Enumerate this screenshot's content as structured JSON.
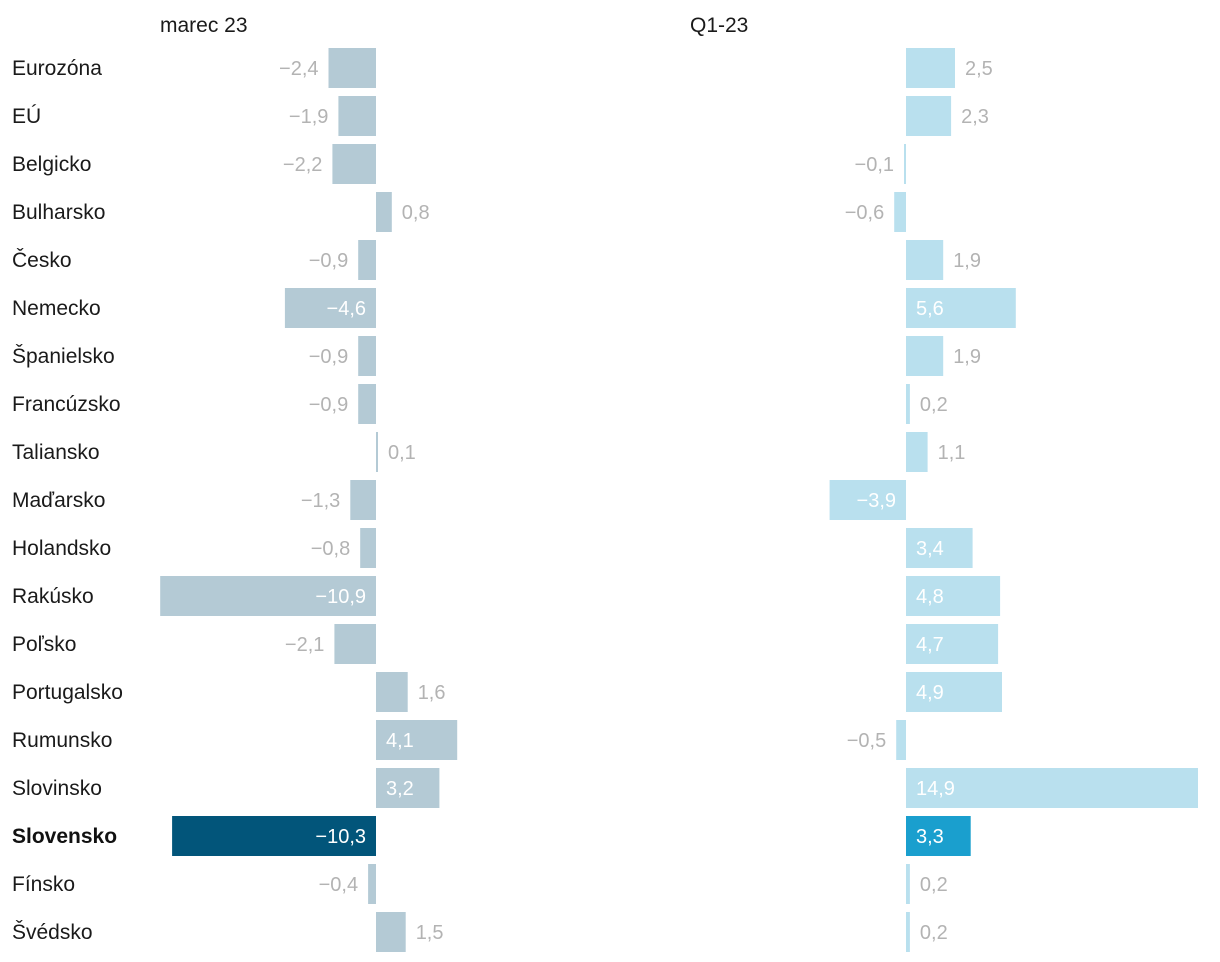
{
  "chart_data": {
    "type": "bar",
    "orientation": "horizontal",
    "categories": [
      "Eurozóna",
      "EÚ",
      "Belgicko",
      "Bulharsko",
      "Česko",
      "Nemecko",
      "Španielsko",
      "Francúzsko",
      "Taliansko",
      "Maďarsko",
      "Holandsko",
      "Rakúsko",
      "Poľsko",
      "Portugalsko",
      "Rumunsko",
      "Slovinsko",
      "Slovensko",
      "Fínsko",
      "Švédsko"
    ],
    "highlight": "Slovensko",
    "series": [
      {
        "name": "marec 23",
        "values": [
          -2.4,
          -1.9,
          -2.2,
          0.8,
          -0.9,
          -4.6,
          -0.9,
          -0.9,
          0.1,
          -1.3,
          -0.8,
          -10.9,
          -2.1,
          1.6,
          4.1,
          3.2,
          -10.3,
          -0.4,
          1.5
        ],
        "labels": [
          "−2,4",
          "−1,9",
          "−2,2",
          "0,8",
          "−0,9",
          "−4,6",
          "−0,9",
          "−0,9",
          "0,1",
          "−1,3",
          "−0,8",
          "−10,9",
          "−2,1",
          "1,6",
          "4,1",
          "3,2",
          "−10,3",
          "−0,4",
          "1,5"
        ],
        "color": "#b4cad5",
        "highlight_color": "#02557a"
      },
      {
        "name": "Q1-23",
        "values": [
          2.5,
          2.3,
          -0.1,
          -0.6,
          1.9,
          5.6,
          1.9,
          0.2,
          1.1,
          -3.9,
          3.4,
          4.8,
          4.7,
          4.9,
          -0.5,
          14.9,
          3.3,
          0.2,
          0.2
        ],
        "labels": [
          "2,5",
          "2,3",
          "−0,1",
          "−0,6",
          "1,9",
          "5,6",
          "1,9",
          "0,2",
          "1,1",
          "−3,9",
          "3,4",
          "4,8",
          "4,7",
          "4,9",
          "−0,5",
          "14,9",
          "3,3",
          "0,2",
          "0,2"
        ],
        "color": "#b9e0ee",
        "highlight_color": "#1a9fce"
      }
    ],
    "inside_label_color": "#ffffff",
    "outside_label_color": "#b3b3b3"
  }
}
